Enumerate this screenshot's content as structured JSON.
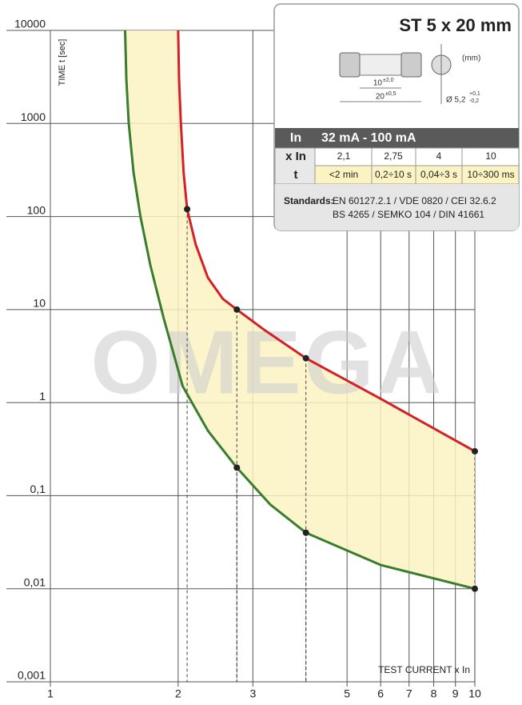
{
  "chart_data": {
    "type": "line",
    "y_label": "TIME t [sec]",
    "x_label": "TEST CURRENT x In",
    "watermark": "OMEGA",
    "log_x": true,
    "log_y": true,
    "grid": true,
    "xlim": [
      1,
      10
    ],
    "ylim": [
      0.001,
      10000
    ],
    "xticks": [
      1,
      2,
      3,
      5,
      6,
      7,
      8,
      9,
      10
    ],
    "yticks": [
      10000,
      1000,
      100,
      10,
      1,
      {
        "value": 0.1,
        "label": "0,1"
      },
      {
        "value": 0.01,
        "label": "0,01"
      },
      {
        "value": 0.001,
        "label": "0,001"
      }
    ],
    "fill_color": "#fbf3c2",
    "series": [
      {
        "color": "#d42027",
        "x": [
          2.0,
          2.01,
          2.03,
          2.06,
          2.1,
          2.2,
          2.35,
          2.55,
          2.75,
          3.2,
          4,
          6,
          10
        ],
        "values": [
          10000,
          3000,
          1000,
          300,
          120,
          50,
          22,
          13,
          10,
          6,
          3,
          1.1,
          0.3
        ]
      },
      {
        "color": "#3a7d2e",
        "x": [
          1.5,
          1.51,
          1.53,
          1.57,
          1.63,
          1.72,
          1.85,
          2.05,
          2.35,
          2.75,
          3.3,
          4,
          6,
          10
        ],
        "values": [
          10000,
          3000,
          1000,
          300,
          100,
          30,
          8,
          1.5,
          0.5,
          0.2,
          0.08,
          0.04,
          0.018,
          0.01
        ]
      }
    ],
    "points": {
      "color": "#222222",
      "x": [
        2.1,
        2.75,
        4,
        10,
        2.75,
        4,
        10
      ],
      "values": [
        120,
        10,
        3,
        0.3,
        0.2,
        0.04,
        0.01
      ]
    }
  },
  "info_box": {
    "title": "ST 5 x 20 mm",
    "unit": "(mm)",
    "length_inner": "10",
    "length_inner_tol": "±2,0",
    "length_outer": "20",
    "length_outer_tol": "±0,5",
    "diameter": "Ø 5,2",
    "diameter_tol_plus": "+0,1",
    "diameter_tol_minus": "-0,2",
    "table": {
      "rows": [
        [
          "In",
          "32 mA - 100 mA"
        ],
        [
          "x In",
          "2,1",
          "2,75",
          "4",
          "10"
        ],
        [
          "t",
          "<2 min",
          "0,2÷10 s",
          "0,04÷3 s",
          "10÷300 ms"
        ]
      ]
    },
    "standards_label": "Standards:",
    "standards": [
      "EN 60127.2.1 / VDE 0820 / CEI 32.6.2",
      "BS 4265 / SEMKO 104 / DIN 41661"
    ]
  }
}
